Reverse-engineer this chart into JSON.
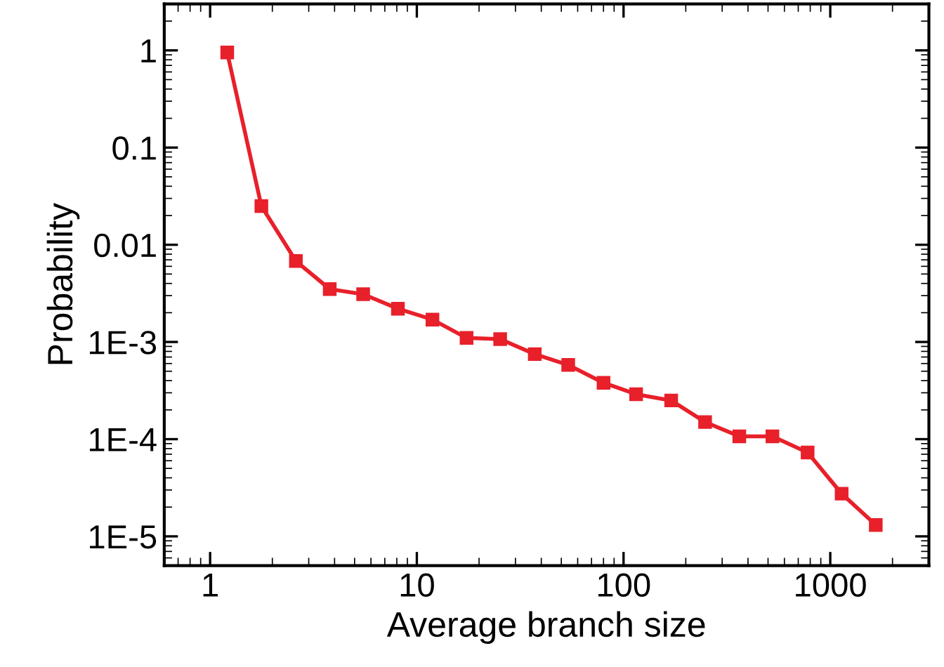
{
  "chart_data": {
    "type": "line",
    "xlabel": "Average branch size",
    "ylabel": "Probability",
    "log": "xy",
    "x": [
      1.21,
      1.77,
      2.6,
      3.79,
      5.5,
      8.1,
      11.9,
      17.4,
      25.3,
      37.2,
      54,
      80,
      115,
      170,
      248,
      363,
      525,
      777,
      1135,
      1660
    ],
    "series": [
      {
        "color": "#e8202a",
        "values": [
          0.95,
          0.025,
          0.0068,
          0.0035,
          0.0031,
          0.0022,
          0.0017,
          0.0011,
          0.00107,
          0.00075,
          0.00058,
          0.00038,
          0.00029,
          0.00025,
          0.00015,
          0.000107,
          0.000107,
          7.3e-05,
          2.75e-05,
          1.31e-05
        ]
      }
    ],
    "xlim": [
      0.6,
      3000
    ],
    "ylim": [
      5e-06,
      3
    ],
    "xticks": [
      1,
      10,
      100,
      1000
    ],
    "yticks": [
      1,
      0.1,
      0.01,
      {
        "value": 0.001,
        "label": "1E-3"
      },
      {
        "value": 0.0001,
        "label": "1E-4"
      },
      {
        "value": 1e-05,
        "label": "1E-5"
      }
    ],
    "marker": "square",
    "line_style": "solid",
    "grid": false,
    "legend": false
  }
}
